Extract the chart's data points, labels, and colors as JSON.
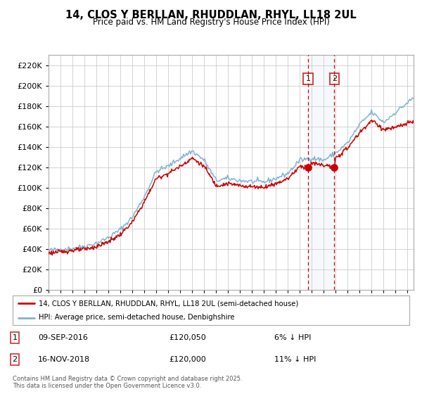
{
  "title": "14, CLOS Y BERLLAN, RHUDDLAN, RHYL, LL18 2UL",
  "subtitle": "Price paid vs. HM Land Registry's House Price Index (HPI)",
  "legend_line1": "14, CLOS Y BERLLAN, RHUDDLAN, RHYL, LL18 2UL (semi-detached house)",
  "legend_line2": "HPI: Average price, semi-detached house, Denbighshire",
  "sale1_date": "09-SEP-2016",
  "sale1_price": "£120,050",
  "sale1_hpi": "6% ↓ HPI",
  "sale2_date": "16-NOV-2018",
  "sale2_price": "£120,000",
  "sale2_hpi": "11% ↓ HPI",
  "footnote": "Contains HM Land Registry data © Crown copyright and database right 2025.\nThis data is licensed under the Open Government Licence v3.0.",
  "property_color": "#cc0000",
  "hpi_color": "#7fb3d3",
  "background_color": "#ffffff",
  "grid_color": "#cccccc",
  "sale1_year": 2016.69,
  "sale2_year": 2018.88,
  "ylim_max": 230000,
  "ylim_min": 0,
  "xmin": 1995,
  "xmax": 2025.5
}
